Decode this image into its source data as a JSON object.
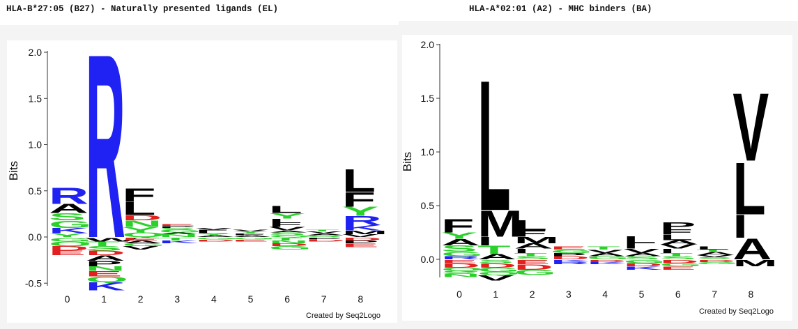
{
  "chart_data": [
    {
      "type": "sequence-logo",
      "title": "HLA-B*27:05 (B27) - Naturally presented ligands (EL)",
      "ylabel": "Bits",
      "ylim": [
        -0.55,
        2.05
      ],
      "yticks": [
        "2.0",
        "1.5",
        "1.0",
        "0.5",
        "0.0",
        "-0.5"
      ],
      "positions": [
        "0",
        "1",
        "2",
        "3",
        "4",
        "5",
        "6",
        "7",
        "8"
      ],
      "credit": "Created by Seq2Logo",
      "columns": [
        {
          "pos": "0",
          "up": [
            [
              "Y",
              0.04
            ],
            [
              "K",
              0.06
            ],
            [
              "G",
              0.08
            ],
            [
              "S",
              0.08
            ],
            [
              "A",
              0.1
            ],
            [
              "R",
              0.18
            ]
          ],
          "down": [
            [
              "G",
              0.04
            ],
            [
              "Q",
              0.05
            ],
            [
              "D",
              0.05
            ],
            [
              "E",
              0.05
            ]
          ]
        },
        {
          "pos": "1",
          "up": [
            [
              "R",
              2.05
            ]
          ],
          "down": [
            [
              "W",
              0.04
            ],
            [
              "T",
              0.05
            ],
            [
              "S",
              0.05
            ],
            [
              "D",
              0.05
            ],
            [
              "A",
              0.06
            ],
            [
              "P",
              0.06
            ],
            [
              "N",
              0.05
            ],
            [
              "E",
              0.06
            ],
            [
              "Q",
              0.06
            ],
            [
              "K",
              0.09
            ]
          ]
        },
        {
          "pos": "2",
          "up": [
            [
              "Q",
              0.05
            ],
            [
              "Y",
              0.06
            ],
            [
              "N",
              0.07
            ],
            [
              "D",
              0.06
            ],
            [
              "L",
              0.14
            ],
            [
              "F",
              0.15
            ]
          ],
          "down": [
            [
              "E",
              0.03
            ],
            [
              "A",
              0.03
            ],
            [
              "G",
              0.03
            ],
            [
              "V",
              0.04
            ]
          ]
        },
        {
          "pos": "3",
          "up": [
            [
              "N",
              0.03
            ],
            [
              "A",
              0.02
            ],
            [
              "G",
              0.03
            ],
            [
              "S",
              0.02
            ],
            [
              "P",
              0.02
            ],
            [
              "E",
              0.02
            ]
          ],
          "down": [
            [
              "T",
              0.03
            ],
            [
              "K",
              0.03
            ]
          ]
        },
        {
          "pos": "4",
          "up": [
            [
              "A",
              0.02
            ],
            [
              "Y",
              0.02
            ],
            [
              "L",
              0.02
            ],
            [
              "F",
              0.02
            ],
            [
              "V",
              0.02
            ]
          ],
          "down": [
            [
              "G",
              0.02
            ],
            [
              "D",
              0.02
            ]
          ]
        },
        {
          "pos": "5",
          "up": [
            [
              "A",
              0.02
            ],
            [
              "F",
              0.02
            ],
            [
              "Y",
              0.02
            ],
            [
              "V",
              0.02
            ]
          ],
          "down": [
            [
              "G",
              0.02
            ],
            [
              "E",
              0.02
            ]
          ]
        },
        {
          "pos": "6",
          "up": [
            [
              "Q",
              0.02
            ],
            [
              "S",
              0.03
            ],
            [
              "A",
              0.02
            ],
            [
              "V",
              0.04
            ],
            [
              "F",
              0.05
            ],
            [
              "I",
              0.04
            ],
            [
              "Y",
              0.06
            ],
            [
              "L",
              0.08
            ]
          ],
          "down": [
            [
              "T",
              0.03
            ],
            [
              "N",
              0.03
            ],
            [
              "D",
              0.03
            ],
            [
              "G",
              0.04
            ]
          ]
        },
        {
          "pos": "7",
          "up": [
            [
              "S",
              0.02
            ],
            [
              "A",
              0.02
            ],
            [
              "V",
              0.02
            ],
            [
              "T",
              0.02
            ]
          ],
          "down": [
            [
              "P",
              0.02
            ],
            [
              "D",
              0.02
            ]
          ]
        },
        {
          "pos": "8",
          "up": [
            [
              "V",
              0.03
            ],
            [
              "M",
              0.04
            ],
            [
              "K",
              0.06
            ],
            [
              "R",
              0.1
            ],
            [
              "Y",
              0.1
            ],
            [
              "F",
              0.16
            ],
            [
              "L",
              0.25
            ]
          ],
          "down": [
            [
              "D",
              0.03
            ],
            [
              "P",
              0.03
            ],
            [
              "E",
              0.04
            ]
          ]
        }
      ]
    },
    {
      "type": "sequence-logo",
      "title": "HLA-A*02:01 (A2) - MHC binders (BA)",
      "ylabel": "Bits",
      "ylim": [
        -0.2,
        2.0
      ],
      "yticks": [
        "2.0",
        "1.5",
        "1.0",
        "0.5",
        "0.0"
      ],
      "positions": [
        "0",
        "1",
        "2",
        "3",
        "4",
        "5",
        "6",
        "7",
        "8"
      ],
      "credit": "Created by Seq2Logo",
      "columns": [
        {
          "pos": "0",
          "up": [
            [
              "R",
              0.03
            ],
            [
              "G",
              0.04
            ],
            [
              "S",
              0.06
            ],
            [
              "A",
              0.06
            ],
            [
              "Y",
              0.06
            ],
            [
              "F",
              0.13
            ]
          ],
          "down": [
            [
              "E",
              0.03
            ],
            [
              "D",
              0.04
            ],
            [
              "Q",
              0.03
            ],
            [
              "S",
              0.03
            ],
            [
              "N",
              0.03
            ]
          ]
        },
        {
          "pos": "1",
          "up": [
            [
              "A",
              0.05
            ],
            [
              "T",
              0.08
            ],
            [
              "I",
              0.08
            ],
            [
              "M",
              0.25
            ],
            [
              "L",
              1.25
            ]
          ],
          "down": [
            [
              "S",
              0.03
            ],
            [
              "D",
              0.04
            ],
            [
              "G",
              0.04
            ],
            [
              "Q",
              0.03
            ],
            [
              "V",
              0.05
            ]
          ]
        },
        {
          "pos": "2",
          "up": [
            [
              "S",
              0.03
            ],
            [
              "T",
              0.03
            ],
            [
              "I",
              0.04
            ],
            [
              "A",
              0.05
            ],
            [
              "M",
              0.06
            ],
            [
              "F",
              0.06
            ],
            [
              "L",
              0.1
            ]
          ],
          "down": [
            [
              "E",
              0.04
            ],
            [
              "D",
              0.05
            ],
            [
              "G",
              0.05
            ]
          ]
        },
        {
          "pos": "3",
          "up": [
            [
              "D",
              0.03
            ],
            [
              "P",
              0.03
            ],
            [
              "G",
              0.03
            ],
            [
              "E",
              0.03
            ]
          ],
          "down": [
            [
              "K",
              0.02
            ],
            [
              "R",
              0.02
            ]
          ]
        },
        {
          "pos": "4",
          "up": [
            [
              "G",
              0.03
            ],
            [
              "A",
              0.03
            ],
            [
              "V",
              0.03
            ],
            [
              "T",
              0.03
            ]
          ],
          "down": [
            [
              "D",
              0.02
            ],
            [
              "K",
              0.02
            ]
          ]
        },
        {
          "pos": "5",
          "up": [
            [
              "S",
              0.03
            ],
            [
              "A",
              0.03
            ],
            [
              "V",
              0.04
            ],
            [
              "I",
              0.05
            ],
            [
              "L",
              0.07
            ]
          ],
          "down": [
            [
              "G",
              0.03
            ],
            [
              "D",
              0.03
            ],
            [
              "K",
              0.03
            ]
          ]
        },
        {
          "pos": "6",
          "up": [
            [
              "S",
              0.03
            ],
            [
              "T",
              0.03
            ],
            [
              "I",
              0.04
            ],
            [
              "V",
              0.04
            ],
            [
              "A",
              0.04
            ],
            [
              "L",
              0.05
            ],
            [
              "F",
              0.05
            ],
            [
              "P",
              0.07
            ]
          ],
          "down": [
            [
              "D",
              0.03
            ],
            [
              "G",
              0.03
            ],
            [
              "E",
              0.03
            ]
          ]
        },
        {
          "pos": "7",
          "up": [
            [
              "S",
              0.02
            ],
            [
              "V",
              0.02
            ],
            [
              "A",
              0.03
            ],
            [
              "T",
              0.02
            ],
            [
              "L",
              0.03
            ]
          ],
          "down": [
            [
              "D",
              0.02
            ],
            [
              "G",
              0.02
            ]
          ]
        },
        {
          "pos": "8",
          "up": [
            [
              "A",
              0.2
            ],
            [
              "I",
              0.22
            ],
            [
              "L",
              0.5
            ],
            [
              "V",
              0.65
            ]
          ],
          "down": [
            [
              "M",
              0.06
            ]
          ]
        }
      ]
    }
  ],
  "residue_colors": {
    "black": "#000000",
    "blue": "#1f22f2",
    "green": "#2bd12b",
    "red": "#e32020",
    "groups": {
      "black": [
        "A",
        "V",
        "L",
        "I",
        "P",
        "W",
        "F",
        "M"
      ],
      "green": [
        "G",
        "S",
        "T",
        "Y",
        "C",
        "N",
        "Q"
      ],
      "blue": [
        "K",
        "R",
        "H"
      ],
      "red": [
        "D",
        "E"
      ]
    }
  }
}
